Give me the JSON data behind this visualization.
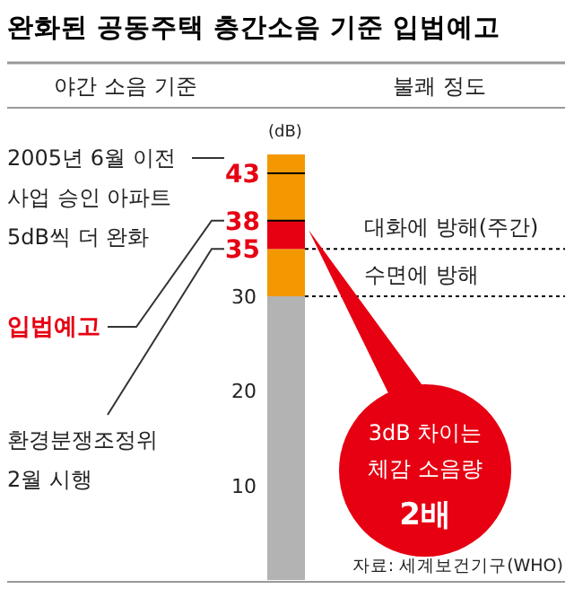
{
  "chart_data": {
    "type": "bar",
    "stacked": true,
    "title": "완화된 공동주택 층간소음 기준 입법예고",
    "ylabel": "(dB)",
    "categories": [
      null
    ],
    "series": [
      {
        "color": "#b3b3b3",
        "values": [
          30
        ]
      },
      {
        "color": "#f39800",
        "values": [
          5
        ]
      },
      {
        "color": "#e60012",
        "values": [
          3
        ]
      },
      {
        "color": "#f39800",
        "values": [
          7
        ]
      }
    ],
    "ylim": [
      0,
      45
    ],
    "yticks": [
      10,
      20,
      30,
      35,
      38,
      43
    ],
    "ref_lines": [
      {
        "axis": "y",
        "value": 35,
        "label": "대화에 방해(주간)",
        "line_style": "dashed",
        "color": "#000000"
      },
      {
        "axis": "y",
        "value": 30,
        "label": "수면에 방해",
        "line_style": "dashed",
        "color": "#000000"
      },
      {
        "axis": "y",
        "value": 43,
        "line_style": "solid",
        "color": "#000000"
      },
      {
        "axis": "y",
        "value": 38,
        "line_style": "solid",
        "color": "#000000"
      }
    ],
    "annotations": [
      "야간 소음 기준",
      "불쾌 정도",
      "3dB 차이는\n체감 소음량\n2배",
      "자료: 세계보건기구(WHO)",
      "2005년 6월 이전\n사업 승인 아파트\n5dB씩 더 완화",
      "입법예고",
      "환경분쟁조정위\n2월 시행"
    ]
  }
}
